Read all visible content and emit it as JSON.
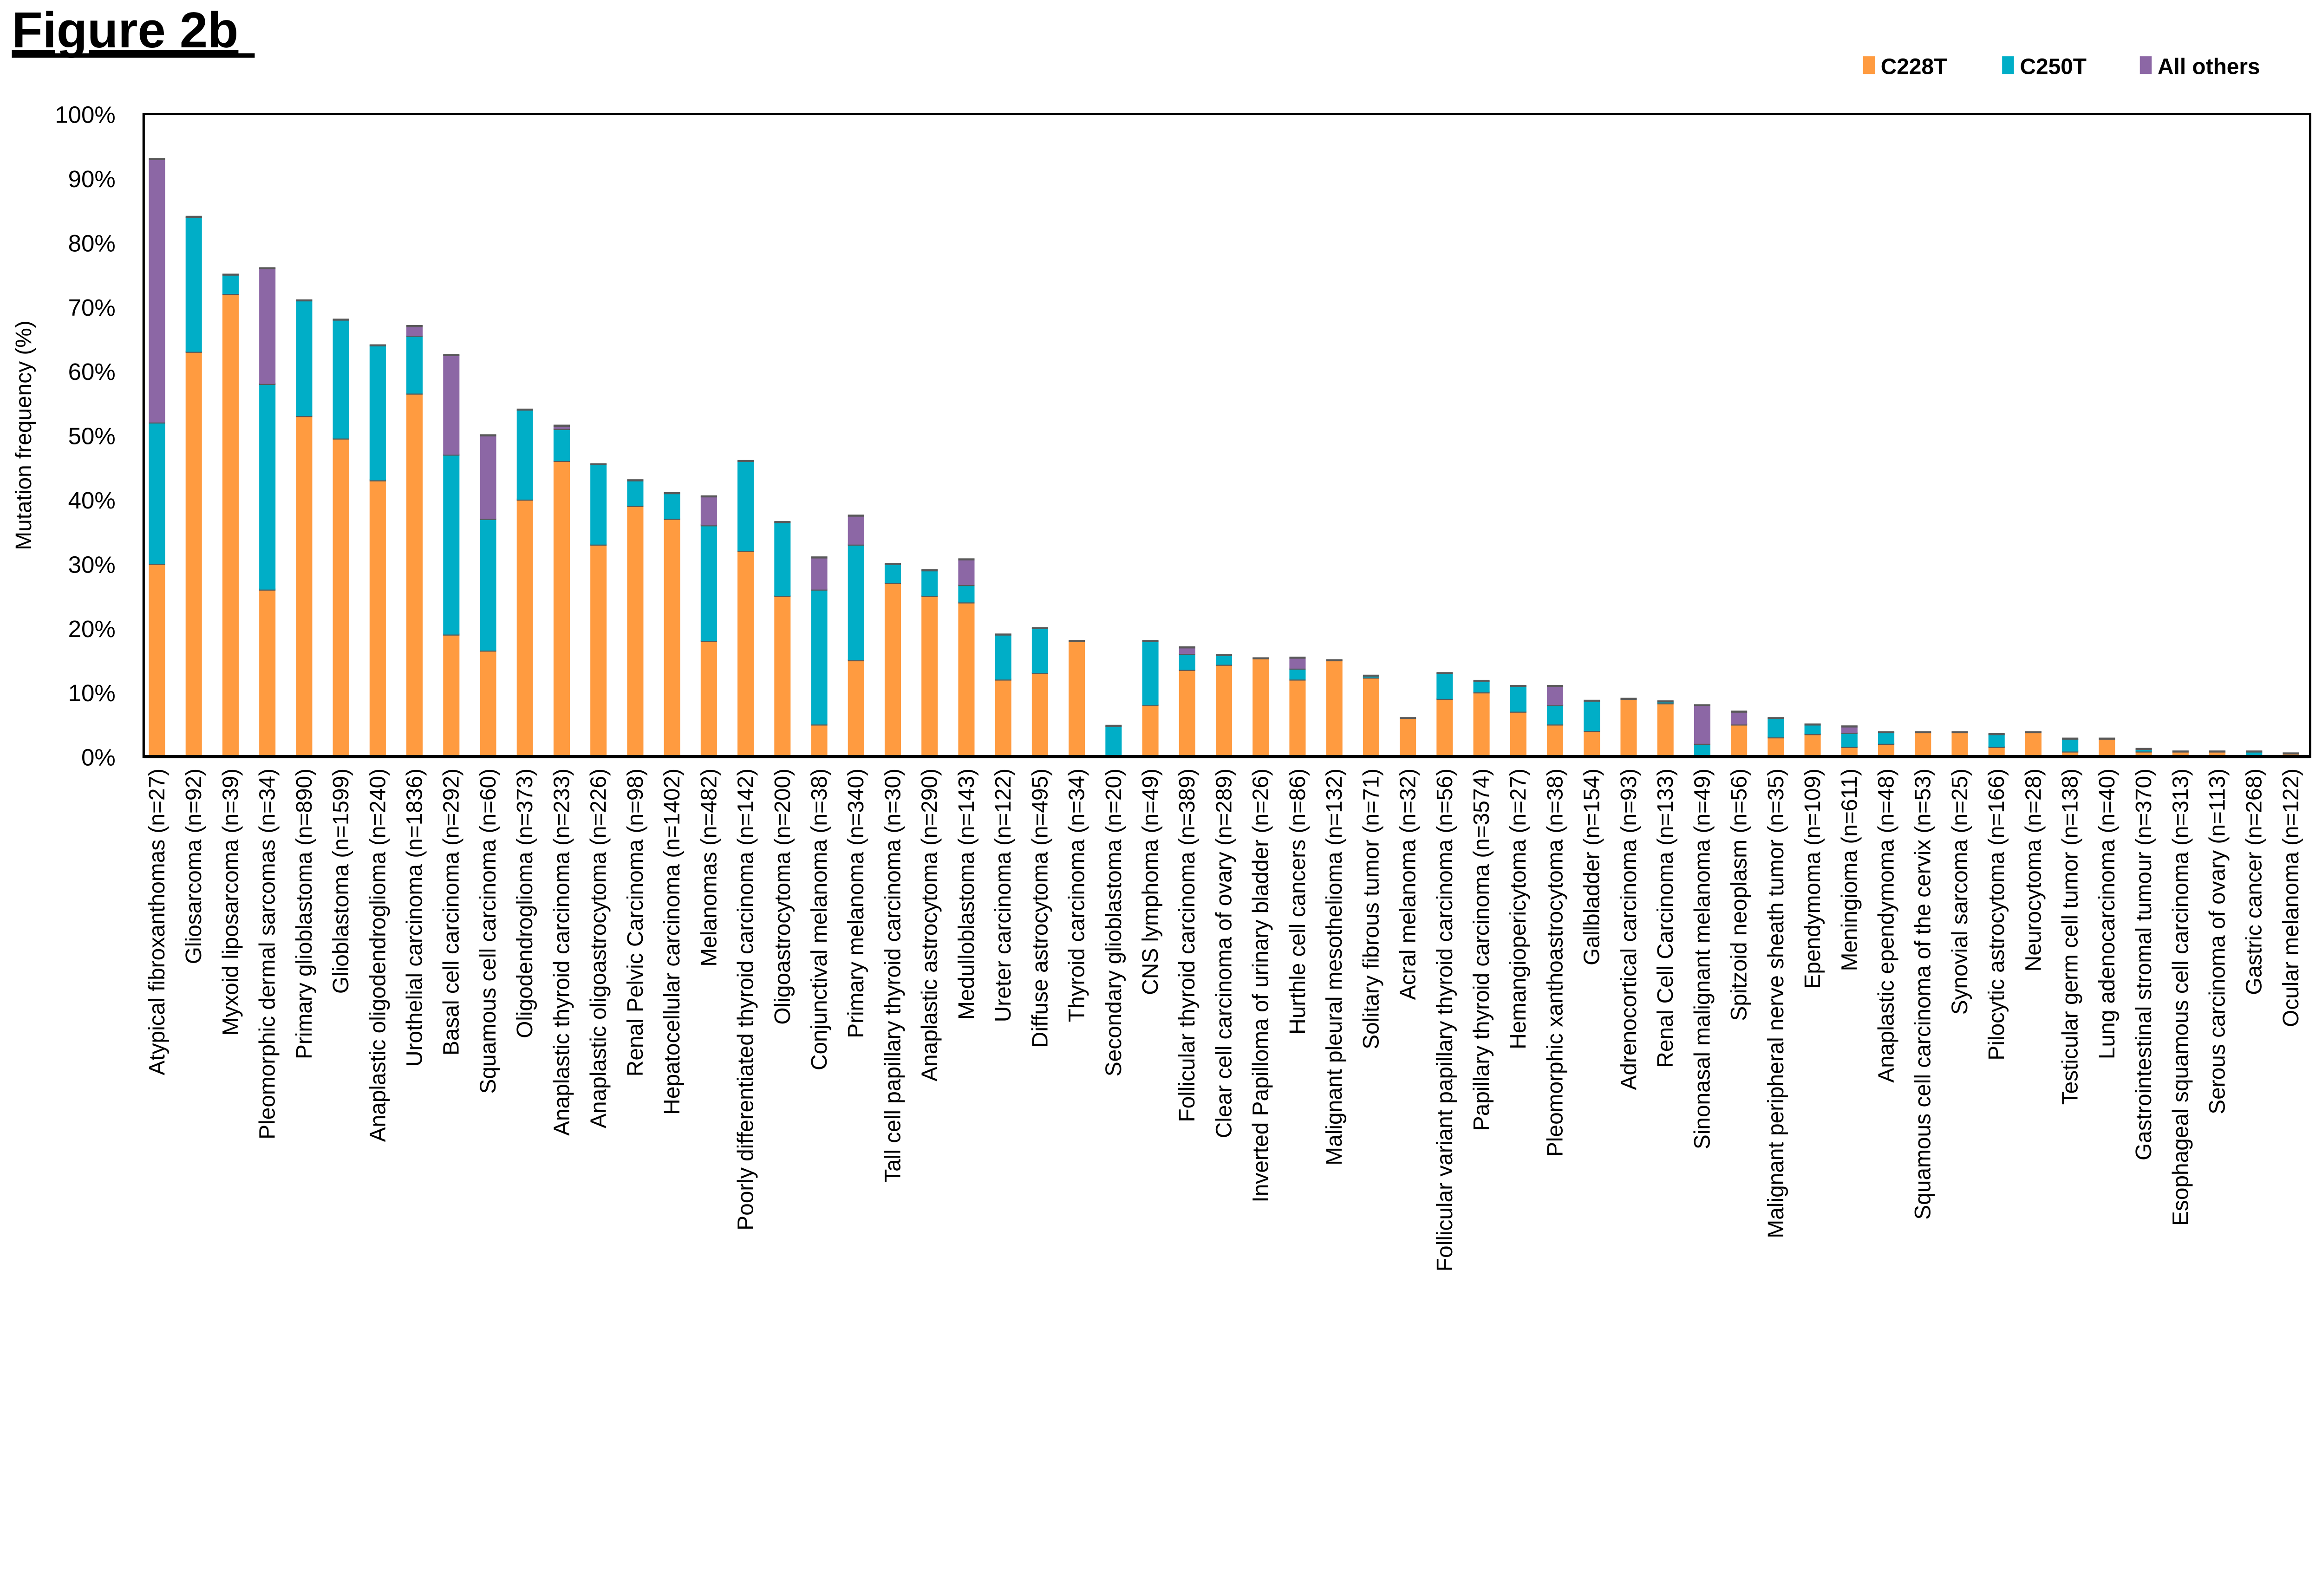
{
  "figure_title": "Figure 2b",
  "chart_data": {
    "type": "bar",
    "stacked": true,
    "title": "",
    "xlabel": "",
    "ylabel": "Mutation frequency (%)",
    "ylim": [
      0,
      100
    ],
    "yticks": [
      "0%",
      "10%",
      "20%",
      "30%",
      "40%",
      "50%",
      "60%",
      "70%",
      "80%",
      "90%",
      "100%"
    ],
    "grid": false,
    "legend_position": "top-right",
    "categories": [
      "Atypical fibroxanthomas (n=27)",
      "Gliosarcoma (n=92)",
      "Myxoid liposarcoma (n=39)",
      "Pleomorphic dermal sarcomas (n=34)",
      "Primary glioblastoma  (n=890)",
      "Glioblastoma (n=1599)",
      "Anaplastic oligodendroglioma (n=240)",
      "Urothelial carcinoma (n=1836)",
      "Basal cell carcinoma (n=292)",
      "Squamous cell carcinoma (n=60)",
      "Oligodendroglioma (n=373)",
      "Anaplastic thyroid carcinoma (n=233)",
      "Anaplastic oligoastrocytoma (n=226)",
      "Renal Pelvic Carcinoma (n=98)",
      "Hepatocellular carcinoma (n=1402)",
      "Melanomas (n=482)",
      "Poorly differentiated thyroid carcinoma (n=142)",
      "Oligoastrocytoma (n=200)",
      "Conjunctival melanoma (n=38)",
      "Primary melanoma (n=340)",
      "Tall cell papillary thyroid carcinoma (n=30)",
      "Anaplastic astrocytoma (n=290)",
      "Medulloblastoma (n=143)",
      "Ureter carcinoma (n=122)",
      "Diffuse astrocytoma (n=495)",
      "Thyroid carcinoma (n=34)",
      "Secondary glioblastoma (n=20)",
      "CNS lymphoma (n=49)",
      "Follicular thyroid carcinoma (n=389)",
      "Clear cell carcinoma of ovary (n=289)",
      "Inverted Papilloma of urinary bladder (n=26)",
      "Hurthle cell cancers (n=86)",
      "Malignant pleural mesothelioma (n=132)",
      "Solitary fibrous tumor (n=71)",
      "Acral melanoma (n=32)",
      "Follicular variant papillary thyroid carcinoma (n=56)",
      "Papillary thyroid carcinoma (n=3574)",
      "Hemangiopericytoma (n=27)",
      "Pleomorphic xanthoastrocytoma (n=38)",
      "Gallbladder (n=154)",
      "Adrenocortical carcinoma (n=93)",
      "Renal Cell Carcinoma (n=133)",
      "Sinonasal malignant melanoma (n=49)",
      "Spitzoid neoplasm (n=56)",
      "Malignant peripheral nerve sheath tumor (n=35)",
      "Ependymoma (n=109)",
      "Meningioma (n=611)",
      "Anaplastic ependymoma (n=48)",
      "Squamous cell carcinoma of the cervix (n=53)",
      "Synovial sarcoma (n=25)",
      "Pilocytic astrocytoma  (n=166)",
      "Neurocytoma (n=28)",
      "Testicular germ cell tumor (n=138)",
      "Lung adenocarcinoma (n=40)",
      "Gastrointestinal stromal tumour (n=370)",
      "Esophageal squamous cell carcinoma (n=313)",
      "Serous carcinoma of ovary (n=113)",
      "Gastric cancer (n=268)",
      "Ocular melanoma (n=122)"
    ],
    "series": [
      {
        "name": "C228T",
        "color": "#FF9B40",
        "values": [
          30,
          63,
          72,
          26,
          53,
          49.5,
          43,
          56.5,
          19,
          16.5,
          40,
          46,
          33,
          39,
          37,
          18,
          32,
          25,
          5,
          15,
          27,
          25,
          24,
          12,
          13,
          18,
          0,
          8,
          13.5,
          14.3,
          15.3,
          12,
          15,
          12.3,
          6,
          9,
          10,
          7,
          5,
          4,
          9,
          8.3,
          0,
          5,
          3,
          3.5,
          1.5,
          2,
          3.8,
          3.8,
          1.5,
          3.8,
          0.8,
          2.8,
          0.8,
          0.8,
          0.8,
          0,
          0.5
        ]
      },
      {
        "name": "C250T",
        "color": "#00AEC7",
        "values": [
          22,
          21,
          3,
          32,
          18,
          18.5,
          21,
          9,
          28,
          20.5,
          14,
          5,
          12.5,
          4,
          4,
          18,
          14,
          11.5,
          21,
          18,
          3,
          4,
          2.7,
          7,
          7,
          0,
          4.8,
          10,
          2.5,
          1.5,
          0,
          1.7,
          0,
          0.3,
          0,
          4,
          1.8,
          4,
          3,
          4.7,
          0,
          0.3,
          2,
          0,
          3,
          1.5,
          2.2,
          1.8,
          0,
          0,
          2,
          0,
          2,
          0,
          0.4,
          0,
          0,
          0.8,
          0
        ]
      },
      {
        "name": "All others",
        "color": "#8C67A5",
        "values": [
          41,
          0,
          0,
          18,
          0,
          0,
          0,
          1.5,
          15.5,
          13,
          0,
          0.5,
          0,
          0,
          0,
          4.5,
          0,
          0,
          5,
          4.5,
          0,
          0,
          4,
          0,
          0,
          0,
          0,
          0,
          1,
          0,
          0,
          1.7,
          0,
          0,
          0,
          0,
          0,
          0,
          3,
          0,
          0,
          0,
          6,
          2,
          0,
          0,
          1,
          0,
          0,
          0,
          0,
          0,
          0,
          0,
          0,
          0,
          0,
          0,
          0
        ]
      }
    ]
  }
}
